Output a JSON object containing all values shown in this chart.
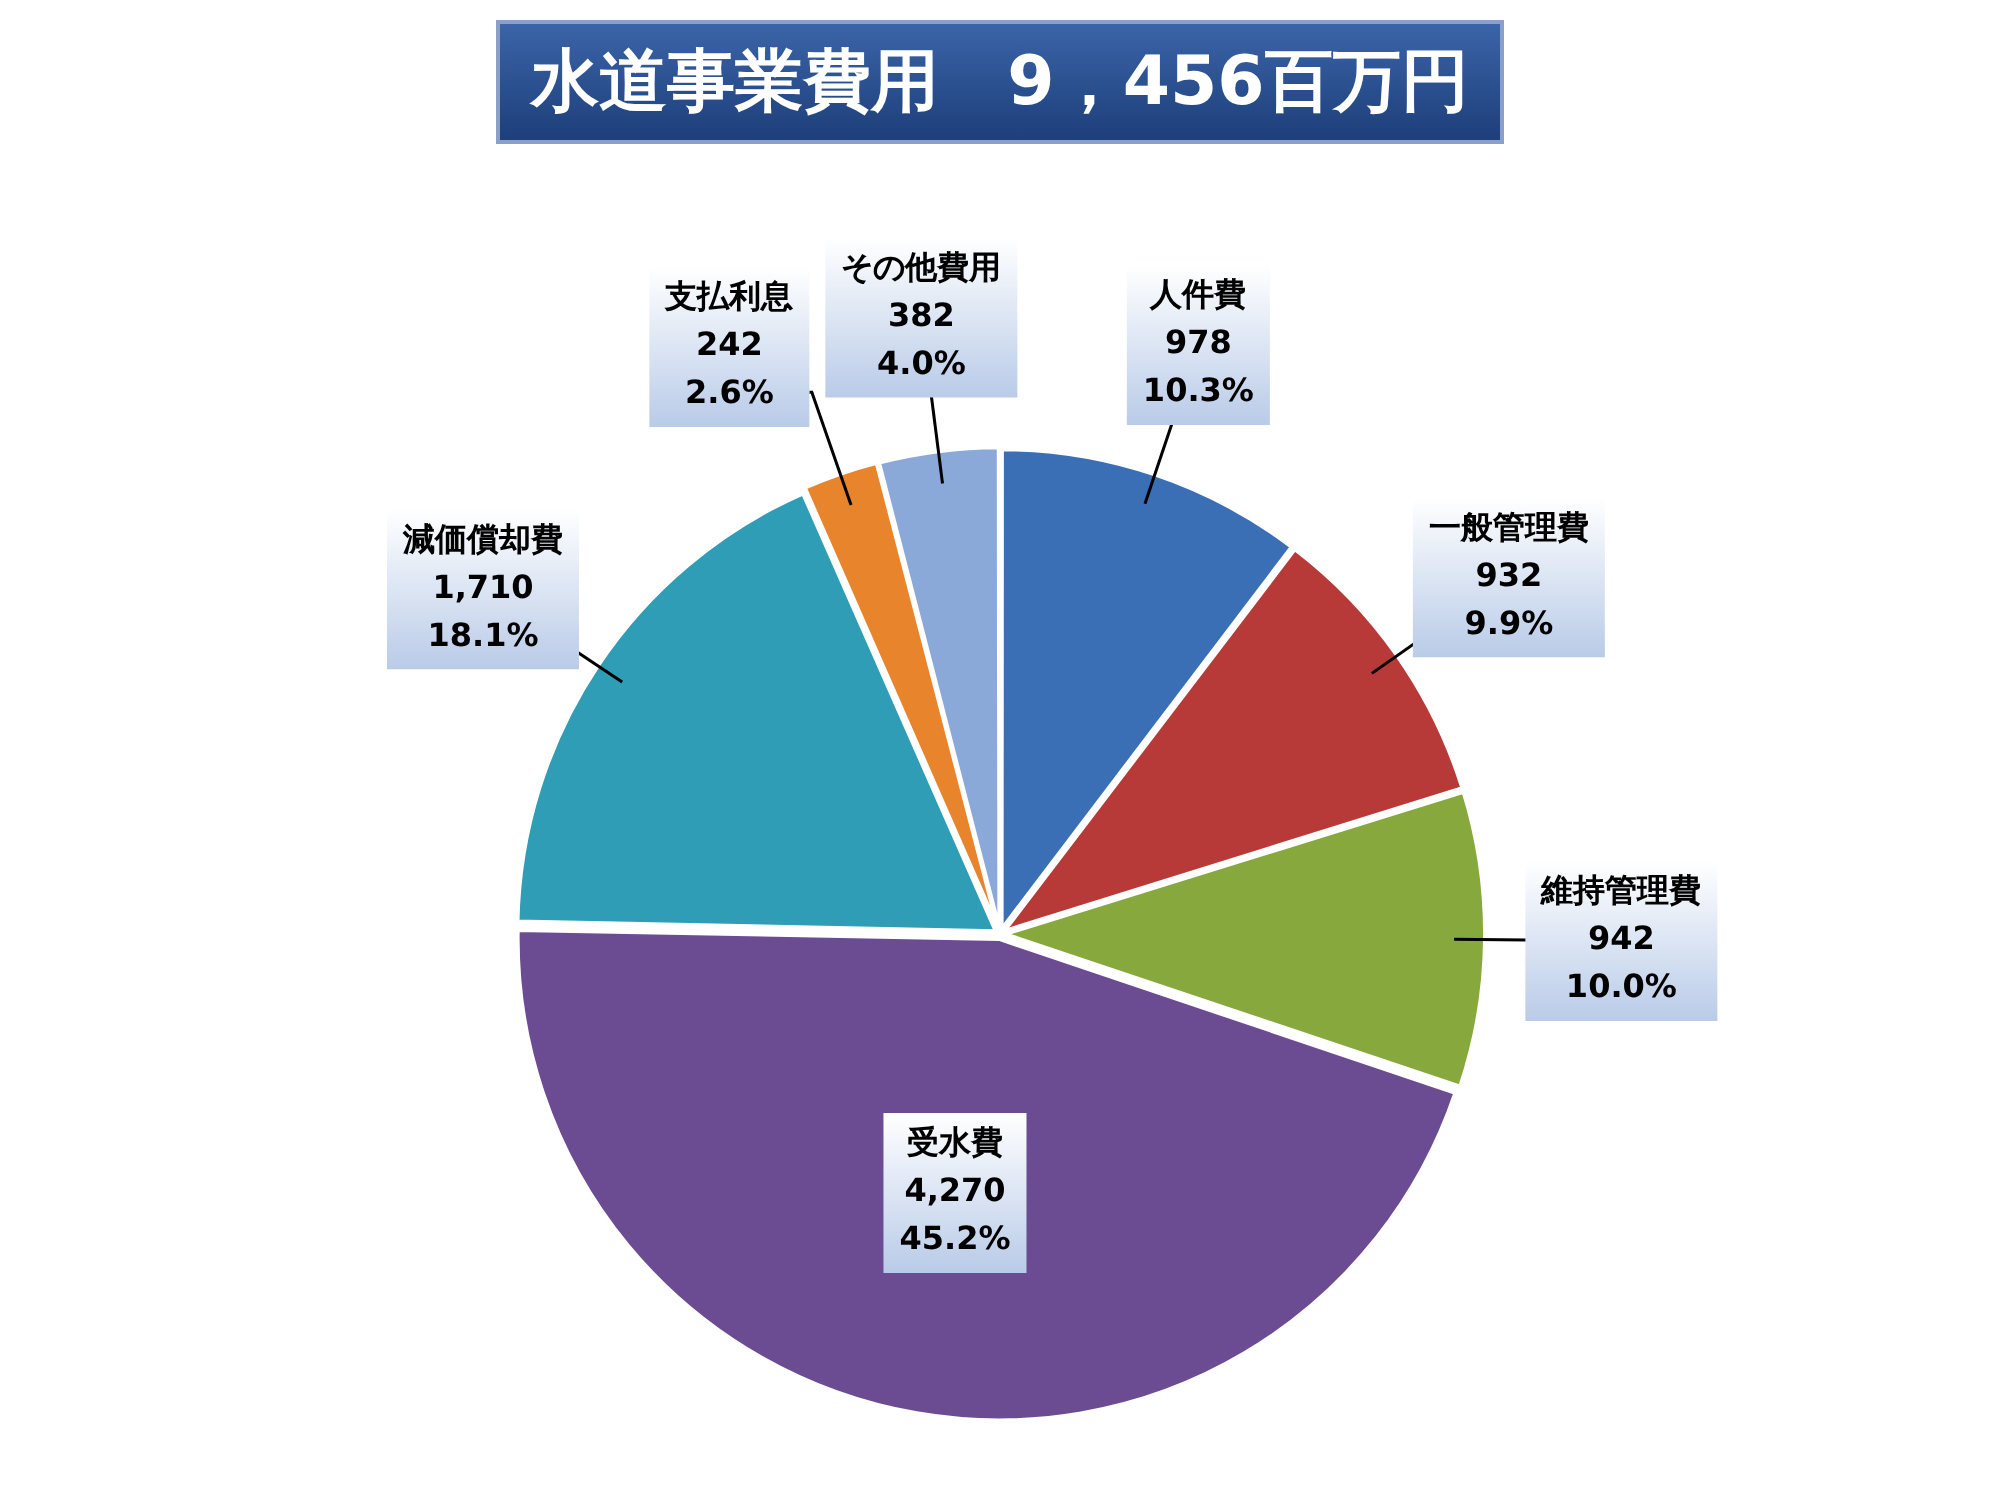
{
  "chart_data": {
    "type": "pie",
    "title": "水道事業費用　9，456百万円",
    "categories": [
      "人件費",
      "一般管理費",
      "維持管理費",
      "受水費",
      "減価償却費",
      "支払利息",
      "その他費用"
    ],
    "values": [
      978,
      932,
      942,
      4270,
      1710,
      242,
      382
    ],
    "colors": [
      "#3a6fb5",
      "#b83a38",
      "#86a83c",
      "#6b4c93",
      "#2e9db5",
      "#e8842c",
      "#8aa8d8"
    ],
    "value_labels": [
      "978\n10.3%",
      "932\n9.9%",
      "942\n10.0%",
      "4,270\n45.2%",
      "1,710\n18.1%",
      "242\n2.6%",
      "382\n4.0%"
    ],
    "legend": false
  }
}
